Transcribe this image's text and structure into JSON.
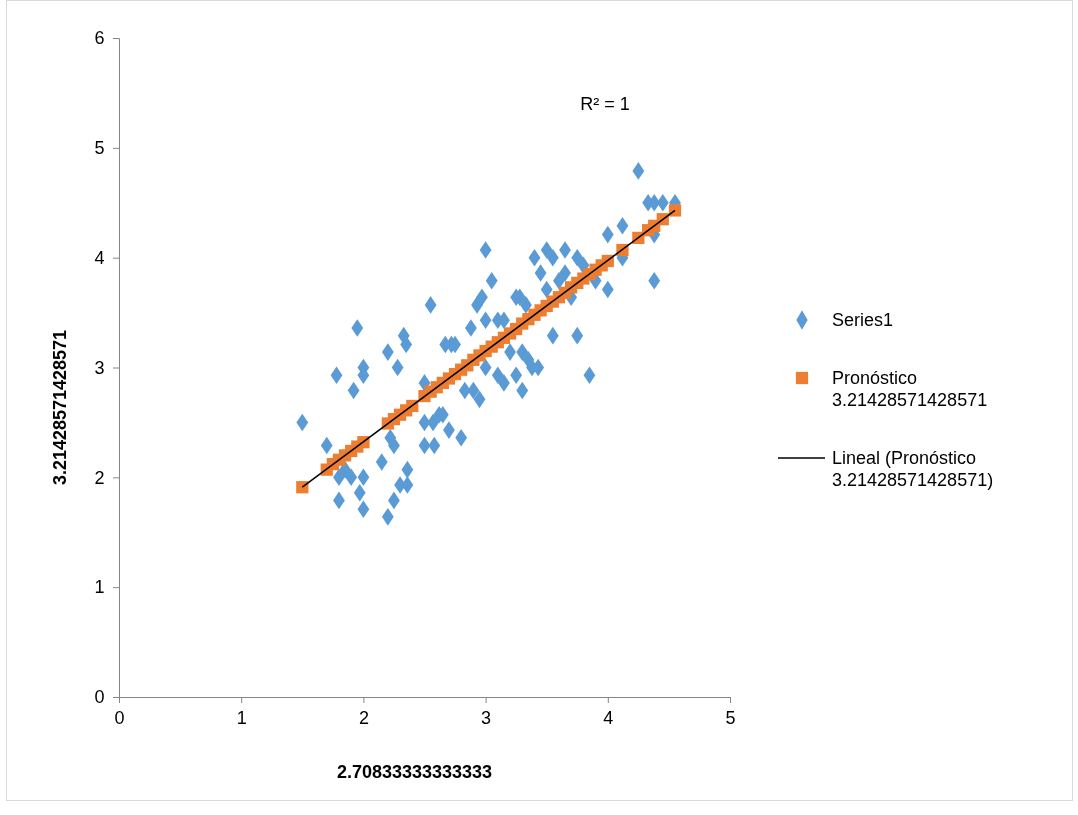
{
  "chart_data": {
    "type": "scatter",
    "xlabel": "2.70833333333333",
    "ylabel": "3.21428571428571",
    "xlim": [
      0,
      5
    ],
    "xticks": [
      0,
      1,
      2,
      3,
      4,
      5
    ],
    "ylim": [
      0,
      6
    ],
    "yticks": [
      0,
      1,
      2,
      3,
      4,
      5,
      6
    ],
    "grid": false,
    "legend": "right",
    "annotations": [
      "R² = 1"
    ],
    "series": [
      {
        "name": "Series1",
        "type": "scatter",
        "marker": "diamond",
        "color": "#5b9bd5",
        "x": [
          1.5,
          1.7,
          1.78,
          1.8,
          1.8,
          1.85,
          1.9,
          1.92,
          1.95,
          1.97,
          2.0,
          2.0,
          2.0,
          2.0,
          2.15,
          2.2,
          2.2,
          2.22,
          2.25,
          2.25,
          2.28,
          2.3,
          2.33,
          2.35,
          2.36,
          2.36,
          2.5,
          2.5,
          2.5,
          2.55,
          2.57,
          2.58,
          2.62,
          2.65,
          2.67,
          2.7,
          2.72,
          2.75,
          2.8,
          2.83,
          2.88,
          2.9,
          2.93,
          2.95,
          2.97,
          3.0,
          3.0,
          3.0,
          3.05,
          3.1,
          3.1,
          3.15,
          3.15,
          3.2,
          3.25,
          3.25,
          3.28,
          3.3,
          3.3,
          3.33,
          3.35,
          3.38,
          3.4,
          3.43,
          3.45,
          3.5,
          3.5,
          3.55,
          3.55,
          3.6,
          3.65,
          3.65,
          3.7,
          3.75,
          3.75,
          3.8,
          3.85,
          3.9,
          4.0,
          4.0,
          4.12,
          4.12,
          4.25,
          4.33,
          4.38,
          4.38,
          4.38,
          4.45,
          4.55
        ],
        "values": [
          2.5,
          2.29,
          2.93,
          1.79,
          2.0,
          2.07,
          2.0,
          2.79,
          3.36,
          1.86,
          3.0,
          2.93,
          2.0,
          1.71,
          2.14,
          3.14,
          1.64,
          2.36,
          2.29,
          1.79,
          3.0,
          1.93,
          3.29,
          3.21,
          2.07,
          1.93,
          2.86,
          2.5,
          2.29,
          3.57,
          2.5,
          2.29,
          2.57,
          2.57,
          3.21,
          2.43,
          3.21,
          3.21,
          2.36,
          2.79,
          3.36,
          2.79,
          3.57,
          2.71,
          3.64,
          4.07,
          3.43,
          3.0,
          3.79,
          3.43,
          2.93,
          3.43,
          2.86,
          3.14,
          3.64,
          2.93,
          3.64,
          3.14,
          2.79,
          3.57,
          3.07,
          3.0,
          4.0,
          3.0,
          3.86,
          4.07,
          3.71,
          4.0,
          3.29,
          3.79,
          4.07,
          3.86,
          3.64,
          4.0,
          3.29,
          3.93,
          2.93,
          3.79,
          4.21,
          3.71,
          4.29,
          4.0,
          4.79,
          4.5,
          4.5,
          4.21,
          3.79,
          4.5,
          4.5
        ]
      },
      {
        "name": "Pronóstico 3.21428571428571",
        "type": "scatter",
        "marker": "square",
        "color": "#ed7d31",
        "x": [
          1.5,
          1.7,
          1.75,
          1.8,
          1.85,
          1.9,
          1.95,
          2.0,
          2.2,
          2.25,
          2.3,
          2.35,
          2.4,
          2.5,
          2.55,
          2.6,
          2.65,
          2.7,
          2.75,
          2.8,
          2.85,
          2.9,
          2.95,
          3.0,
          3.05,
          3.1,
          3.15,
          3.2,
          3.25,
          3.3,
          3.35,
          3.4,
          3.45,
          3.5,
          3.55,
          3.6,
          3.65,
          3.7,
          3.75,
          3.8,
          3.85,
          3.9,
          3.95,
          4.0,
          4.12,
          4.25,
          4.33,
          4.38,
          4.45,
          4.55
        ],
        "values": [
          1.91,
          2.07,
          2.12,
          2.16,
          2.2,
          2.24,
          2.28,
          2.32,
          2.49,
          2.53,
          2.57,
          2.61,
          2.65,
          2.74,
          2.78,
          2.82,
          2.86,
          2.9,
          2.94,
          2.98,
          3.02,
          3.07,
          3.11,
          3.15,
          3.19,
          3.23,
          3.27,
          3.31,
          3.35,
          3.4,
          3.44,
          3.48,
          3.52,
          3.56,
          3.6,
          3.64,
          3.68,
          3.73,
          3.77,
          3.81,
          3.85,
          3.89,
          3.93,
          3.97,
          4.07,
          4.18,
          4.25,
          4.29,
          4.35,
          4.43
        ]
      },
      {
        "name": "Lineal (Pronóstico 3.21428571428571)",
        "type": "line",
        "marker": "none",
        "line_style": "solid",
        "color": "#000000",
        "x": [
          1.5,
          4.55
        ],
        "values": [
          1.91,
          4.43
        ]
      }
    ]
  }
}
